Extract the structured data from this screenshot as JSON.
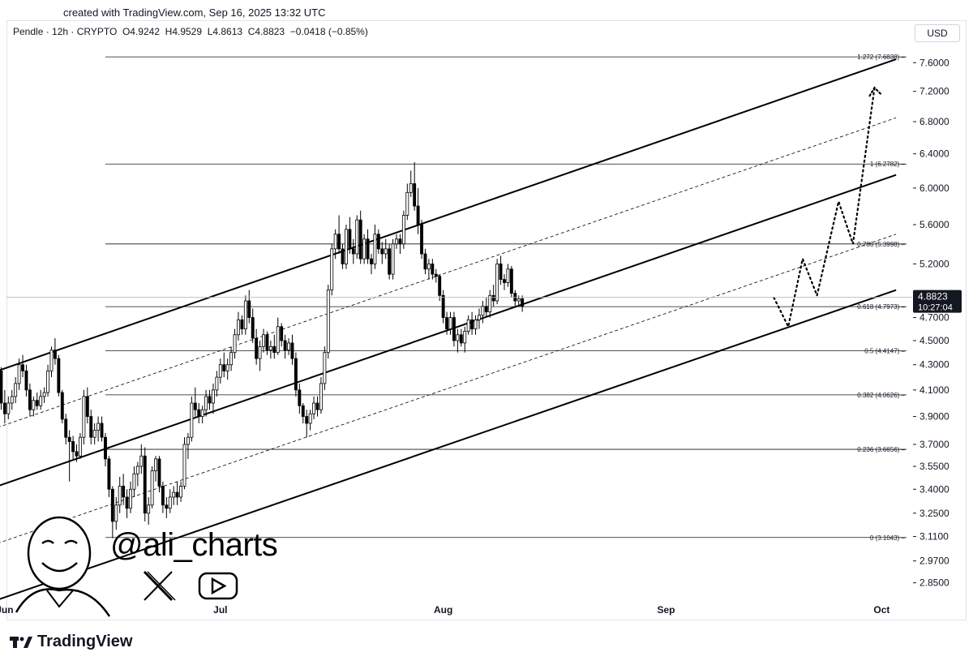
{
  "header": {
    "created": "created with TradingView.com, Sep 16, 2025 13:32 UTC"
  },
  "legend": {
    "text": "Pendle · 12h · CRYPTO  O4.9242  H4.9529  L4.8613  C4.8823  −0.0418 (−0.85%)"
  },
  "currency": "USD",
  "watermark": {
    "handle": "@ali_charts",
    "icons": [
      "avatar-illustration",
      "x-logo-icon",
      "youtube-icon"
    ]
  },
  "footer": {
    "brand": "TradingView",
    "logo": "tradingview-logo-icon"
  },
  "colors": {
    "line": "#000000",
    "fib": "#131722",
    "price_tag_bg": "#131722",
    "price_tag_fg": "#ffffff"
  },
  "chart_data": {
    "type": "candlestick",
    "symbol": "Pendle",
    "interval": "12h",
    "exchange": "CRYPTO",
    "y_axis": {
      "scale": "log",
      "ylim": [
        2.75,
        7.9
      ],
      "ticks": [
        "7.6000",
        "7.2000",
        "6.8000",
        "6.4000",
        "6.0000",
        "5.6000",
        "5.2000",
        "4.7000",
        "4.5000",
        "4.3000",
        "4.1000",
        "3.9000",
        "3.7000",
        "3.5500",
        "3.4000",
        "3.2500",
        "3.1100",
        "2.9700",
        "2.8500"
      ]
    },
    "x_axis": {
      "range": [
        "2025-05-31",
        "2025-10-04"
      ],
      "ticks": [
        {
          "label": "Jun",
          "date": "2025-06-01"
        },
        {
          "label": "Jul",
          "date": "2025-07-01"
        },
        {
          "label": "Aug",
          "date": "2025-08-01"
        },
        {
          "label": "Sep",
          "date": "2025-09-01"
        },
        {
          "label": "Oct",
          "date": "2025-10-01"
        }
      ]
    },
    "last_price": {
      "value": "4.8823",
      "countdown": "10:27:04",
      "numeric": 4.8823
    },
    "fib_levels": [
      {
        "label": "1.272 (7.6838)",
        "value": 7.6838
      },
      {
        "label": "1 (6.2782)",
        "value": 6.2782
      },
      {
        "label": "0.786 (5.3998)",
        "value": 5.3998
      },
      {
        "label": "0.618 (4.7973)",
        "value": 4.7973
      },
      {
        "label": "0.5 (4.4147)",
        "value": 4.4147
      },
      {
        "label": "0.382 (4.0626)",
        "value": 4.0626
      },
      {
        "label": "0.236 (3.6656)",
        "value": 3.6656
      },
      {
        "label": "0 (3.1043)",
        "value": 3.1043
      }
    ],
    "fib_start": "2025-06-15",
    "channels": [
      {
        "name": "upper-channel",
        "style": "solid",
        "points": [
          [
            "2025-05-31",
            4.25
          ],
          [
            "2025-10-03",
            7.65
          ]
        ]
      },
      {
        "name": "upper-mid-channel",
        "style": "dashed",
        "points": [
          [
            "2025-05-31",
            3.82
          ],
          [
            "2025-10-03",
            6.85
          ]
        ]
      },
      {
        "name": "middle-channel",
        "style": "solid",
        "points": [
          [
            "2025-05-31",
            3.42
          ],
          [
            "2025-10-03",
            6.15
          ]
        ]
      },
      {
        "name": "lower-mid-channel",
        "style": "dashed",
        "points": [
          [
            "2025-05-31",
            3.07
          ],
          [
            "2025-10-03",
            5.5
          ]
        ]
      },
      {
        "name": "lower-channel",
        "style": "solid",
        "points": [
          [
            "2025-05-31",
            2.76
          ],
          [
            "2025-10-03",
            4.95
          ]
        ]
      }
    ],
    "projection": {
      "style": "dotted",
      "points": [
        [
          "2025-09-16",
          4.88
        ],
        [
          "2025-09-18",
          4.62
        ],
        [
          "2025-09-20",
          5.25
        ],
        [
          "2025-09-22",
          4.9
        ],
        [
          "2025-09-25",
          5.85
        ],
        [
          "2025-09-27",
          5.4
        ],
        [
          "2025-09-30",
          7.25
        ]
      ],
      "arrow_at": [
        "2025-09-30",
        7.25
      ]
    },
    "candles": [
      [
        "2025-05-31",
        4.18,
        4.3,
        4.1,
        4.25
      ],
      [
        "2025-05-31 12:00",
        4.25,
        4.28,
        3.95,
        4.0
      ],
      [
        "2025-06-01",
        4.0,
        4.1,
        3.85,
        3.92
      ],
      [
        "2025-06-01 12:00",
        3.92,
        4.05,
        3.88,
        4.0
      ],
      [
        "2025-06-02",
        4.0,
        4.1,
        3.95,
        4.05
      ],
      [
        "2025-06-02 12:00",
        4.05,
        4.2,
        4.0,
        4.15
      ],
      [
        "2025-06-03",
        4.15,
        4.35,
        4.1,
        4.3
      ],
      [
        "2025-06-03 12:00",
        4.3,
        4.38,
        4.2,
        4.25
      ],
      [
        "2025-06-04",
        4.25,
        4.3,
        4.05,
        4.1
      ],
      [
        "2025-06-04 12:00",
        4.1,
        4.15,
        3.9,
        3.95
      ],
      [
        "2025-06-05",
        3.95,
        4.05,
        3.9,
        4.02
      ],
      [
        "2025-06-05 12:00",
        4.02,
        4.08,
        3.95,
        3.98
      ],
      [
        "2025-06-06",
        3.98,
        4.1,
        3.95,
        4.05
      ],
      [
        "2025-06-06 12:00",
        4.05,
        4.12,
        4.0,
        4.08
      ],
      [
        "2025-06-07",
        4.08,
        4.3,
        4.05,
        4.25
      ],
      [
        "2025-06-07 12:00",
        4.25,
        4.45,
        4.2,
        4.42
      ],
      [
        "2025-06-08",
        4.42,
        4.52,
        4.3,
        4.35
      ],
      [
        "2025-06-08 12:00",
        4.35,
        4.38,
        4.05,
        4.08
      ],
      [
        "2025-06-09",
        4.08,
        4.1,
        3.85,
        3.88
      ],
      [
        "2025-06-09 12:00",
        3.88,
        3.92,
        3.7,
        3.75
      ],
      [
        "2025-06-10",
        3.75,
        3.8,
        3.45,
        3.72
      ],
      [
        "2025-06-10 12:00",
        3.72,
        3.76,
        3.6,
        3.65
      ],
      [
        "2025-06-11",
        3.65,
        3.7,
        3.58,
        3.62
      ],
      [
        "2025-06-11 12:00",
        3.62,
        3.78,
        3.6,
        3.75
      ],
      [
        "2025-06-12",
        3.75,
        4.1,
        3.7,
        4.05
      ],
      [
        "2025-06-12 12:00",
        4.05,
        4.12,
        3.85,
        3.9
      ],
      [
        "2025-06-13",
        3.9,
        3.95,
        3.7,
        3.75
      ],
      [
        "2025-06-13 12:00",
        3.75,
        3.85,
        3.7,
        3.8
      ],
      [
        "2025-06-14",
        3.8,
        3.9,
        3.72,
        3.85
      ],
      [
        "2025-06-14 12:00",
        3.85,
        3.9,
        3.72,
        3.75
      ],
      [
        "2025-06-15",
        3.75,
        3.78,
        3.55,
        3.6
      ],
      [
        "2025-06-15 12:00",
        3.6,
        3.62,
        3.35,
        3.4
      ],
      [
        "2025-06-16",
        3.4,
        3.42,
        3.1,
        3.2
      ],
      [
        "2025-06-16 12:00",
        3.2,
        3.35,
        3.15,
        3.3
      ],
      [
        "2025-06-17",
        3.3,
        3.48,
        3.25,
        3.42
      ],
      [
        "2025-06-17 12:00",
        3.42,
        3.5,
        3.3,
        3.35
      ],
      [
        "2025-06-18",
        3.35,
        3.4,
        3.22,
        3.28
      ],
      [
        "2025-06-18 12:00",
        3.28,
        3.45,
        3.25,
        3.4
      ],
      [
        "2025-06-19",
        3.4,
        3.55,
        3.35,
        3.5
      ],
      [
        "2025-06-19 12:00",
        3.5,
        3.58,
        3.42,
        3.55
      ],
      [
        "2025-06-20",
        3.55,
        3.7,
        3.5,
        3.62
      ],
      [
        "2025-06-20 12:00",
        3.62,
        3.68,
        3.2,
        3.25
      ],
      [
        "2025-06-21",
        3.25,
        3.35,
        3.18,
        3.3
      ],
      [
        "2025-06-21 12:00",
        3.3,
        3.55,
        3.28,
        3.52
      ],
      [
        "2025-06-22",
        3.52,
        3.62,
        3.45,
        3.6
      ],
      [
        "2025-06-22 12:00",
        3.6,
        3.62,
        3.38,
        3.42
      ],
      [
        "2025-06-23",
        3.42,
        3.45,
        3.25,
        3.3
      ],
      [
        "2025-06-23 12:00",
        3.3,
        3.35,
        3.22,
        3.28
      ],
      [
        "2025-06-24",
        3.28,
        3.4,
        3.25,
        3.35
      ],
      [
        "2025-06-24 12:00",
        3.35,
        3.42,
        3.3,
        3.38
      ],
      [
        "2025-06-25",
        3.38,
        3.45,
        3.3,
        3.35
      ],
      [
        "2025-06-25 12:00",
        3.35,
        3.45,
        3.32,
        3.42
      ],
      [
        "2025-06-26",
        3.42,
        3.75,
        3.4,
        3.7
      ],
      [
        "2025-06-26 12:00",
        3.7,
        3.78,
        3.6,
        3.75
      ],
      [
        "2025-06-27",
        3.75,
        4.05,
        3.72,
        4.0
      ],
      [
        "2025-06-27 12:00",
        4.0,
        4.12,
        3.9,
        3.95
      ],
      [
        "2025-06-28",
        3.95,
        4.0,
        3.85,
        3.9
      ],
      [
        "2025-06-28 12:00",
        3.9,
        3.98,
        3.85,
        3.95
      ],
      [
        "2025-06-29",
        3.95,
        4.1,
        3.9,
        4.05
      ],
      [
        "2025-06-29 12:00",
        4.05,
        4.1,
        3.95,
        4.0
      ],
      [
        "2025-06-30",
        4.0,
        4.15,
        3.92,
        4.1
      ],
      [
        "2025-06-30 12:00",
        4.1,
        4.25,
        4.05,
        4.2
      ],
      [
        "2025-07-01",
        4.2,
        4.35,
        4.15,
        4.3
      ],
      [
        "2025-07-01 12:00",
        4.3,
        4.4,
        4.2,
        4.25
      ],
      [
        "2025-07-02",
        4.25,
        4.35,
        4.18,
        4.3
      ],
      [
        "2025-07-02 12:00",
        4.3,
        4.45,
        4.25,
        4.4
      ],
      [
        "2025-07-03",
        4.4,
        4.6,
        4.35,
        4.55
      ],
      [
        "2025-07-03 12:00",
        4.55,
        4.75,
        4.5,
        4.68
      ],
      [
        "2025-07-04",
        4.68,
        4.72,
        4.55,
        4.6
      ],
      [
        "2025-07-04 12:00",
        4.6,
        4.9,
        4.55,
        4.85
      ],
      [
        "2025-07-05",
        4.85,
        4.95,
        4.65,
        4.7
      ],
      [
        "2025-07-05 12:00",
        4.7,
        4.78,
        4.48,
        4.52
      ],
      [
        "2025-07-06",
        4.52,
        4.6,
        4.3,
        4.35
      ],
      [
        "2025-07-06 12:00",
        4.35,
        4.5,
        4.25,
        4.45
      ],
      [
        "2025-07-07",
        4.45,
        4.6,
        4.4,
        4.55
      ],
      [
        "2025-07-07 12:00",
        4.55,
        4.58,
        4.38,
        4.42
      ],
      [
        "2025-07-08",
        4.42,
        4.5,
        4.35,
        4.45
      ],
      [
        "2025-07-08 12:00",
        4.45,
        4.55,
        4.35,
        4.4
      ],
      [
        "2025-07-09",
        4.4,
        4.7,
        4.38,
        4.62
      ],
      [
        "2025-07-09 12:00",
        4.62,
        4.65,
        4.45,
        4.5
      ],
      [
        "2025-07-10",
        4.5,
        4.55,
        4.35,
        4.42
      ],
      [
        "2025-07-10 12:00",
        4.42,
        4.52,
        4.38,
        4.48
      ],
      [
        "2025-07-11",
        4.48,
        4.55,
        4.3,
        4.35
      ],
      [
        "2025-07-11 12:00",
        4.35,
        4.4,
        4.05,
        4.1
      ],
      [
        "2025-07-12",
        4.1,
        4.15,
        3.92,
        3.98
      ],
      [
        "2025-07-12 12:00",
        3.98,
        4.0,
        3.85,
        3.9
      ],
      [
        "2025-07-13",
        3.9,
        3.95,
        3.75,
        3.85
      ],
      [
        "2025-07-13 12:00",
        3.85,
        3.95,
        3.8,
        3.92
      ],
      [
        "2025-07-14",
        3.92,
        4.05,
        3.88,
        4.0
      ],
      [
        "2025-07-14 12:00",
        4.0,
        4.05,
        3.9,
        3.95
      ],
      [
        "2025-07-15",
        3.95,
        4.2,
        3.92,
        4.15
      ],
      [
        "2025-07-15 12:00",
        4.15,
        4.45,
        4.1,
        4.4
      ],
      [
        "2025-07-16",
        4.4,
        5.0,
        4.35,
        4.95
      ],
      [
        "2025-07-16 12:00",
        4.95,
        5.4,
        4.9,
        5.35
      ],
      [
        "2025-07-17",
        5.35,
        5.55,
        5.25,
        5.5
      ],
      [
        "2025-07-17 12:00",
        5.5,
        5.7,
        5.3,
        5.35
      ],
      [
        "2025-07-18",
        5.35,
        5.4,
        5.15,
        5.2
      ],
      [
        "2025-07-18 12:00",
        5.2,
        5.6,
        5.15,
        5.55
      ],
      [
        "2025-07-19",
        5.55,
        5.68,
        5.3,
        5.35
      ],
      [
        "2025-07-19 12:00",
        5.35,
        5.45,
        5.2,
        5.3
      ],
      [
        "2025-07-20",
        5.3,
        5.7,
        5.25,
        5.65
      ],
      [
        "2025-07-20 12:00",
        5.65,
        5.75,
        5.2,
        5.25
      ],
      [
        "2025-07-21",
        5.25,
        5.5,
        5.2,
        5.45
      ],
      [
        "2025-07-21 12:00",
        5.45,
        5.55,
        5.2,
        5.25
      ],
      [
        "2025-07-22",
        5.25,
        5.3,
        5.1,
        5.2
      ],
      [
        "2025-07-22 12:00",
        5.2,
        5.6,
        5.15,
        5.5
      ],
      [
        "2025-07-23",
        5.5,
        5.55,
        5.3,
        5.35
      ],
      [
        "2025-07-23 12:00",
        5.35,
        5.42,
        5.2,
        5.3
      ],
      [
        "2025-07-24",
        5.3,
        5.45,
        5.25,
        5.35
      ],
      [
        "2025-07-24 12:00",
        5.35,
        5.4,
        5.05,
        5.1
      ],
      [
        "2025-07-25",
        5.1,
        5.45,
        5.05,
        5.4
      ],
      [
        "2025-07-25 12:00",
        5.4,
        5.5,
        5.35,
        5.45
      ],
      [
        "2025-07-26",
        5.45,
        5.5,
        5.3,
        5.4
      ],
      [
        "2025-07-26 12:00",
        5.4,
        5.75,
        5.35,
        5.7
      ],
      [
        "2025-07-27",
        5.7,
        6.05,
        5.65,
        5.95
      ],
      [
        "2025-07-27 12:00",
        5.95,
        6.2,
        5.9,
        6.05
      ],
      [
        "2025-07-28",
        6.05,
        6.3,
        5.75,
        5.8
      ],
      [
        "2025-07-28 12:00",
        5.8,
        6.0,
        5.5,
        5.6
      ],
      [
        "2025-07-29",
        5.6,
        5.65,
        5.25,
        5.3
      ],
      [
        "2025-07-29 12:00",
        5.3,
        5.35,
        5.1,
        5.15
      ],
      [
        "2025-07-30",
        5.15,
        5.25,
        5.05,
        5.2
      ],
      [
        "2025-07-30 12:00",
        5.2,
        5.25,
        5.05,
        5.1
      ],
      [
        "2025-07-31",
        5.1,
        5.15,
        5.02,
        5.08
      ],
      [
        "2025-07-31 12:00",
        5.08,
        5.1,
        4.85,
        4.9
      ],
      [
        "2025-08-01",
        4.9,
        4.95,
        4.65,
        4.7
      ],
      [
        "2025-08-01 12:00",
        4.7,
        4.75,
        4.55,
        4.6
      ],
      [
        "2025-08-02",
        4.6,
        4.75,
        4.55,
        4.7
      ],
      [
        "2025-08-02 12:00",
        4.7,
        4.75,
        4.45,
        4.5
      ],
      [
        "2025-08-03",
        4.5,
        4.6,
        4.4,
        4.55
      ],
      [
        "2025-08-03 12:00",
        4.55,
        4.6,
        4.45,
        4.48
      ],
      [
        "2025-08-04",
        4.48,
        4.62,
        4.4,
        4.58
      ],
      [
        "2025-08-04 12:00",
        4.58,
        4.72,
        4.55,
        4.68
      ],
      [
        "2025-08-05",
        4.68,
        4.75,
        4.55,
        4.6
      ],
      [
        "2025-08-05 12:00",
        4.6,
        4.72,
        4.55,
        4.68
      ],
      [
        "2025-08-06",
        4.68,
        4.78,
        4.6,
        4.72
      ],
      [
        "2025-08-06 12:00",
        4.72,
        4.85,
        4.65,
        4.8
      ],
      [
        "2025-08-07",
        4.8,
        4.88,
        4.7,
        4.75
      ],
      [
        "2025-08-07 12:00",
        4.75,
        4.95,
        4.7,
        4.9
      ],
      [
        "2025-08-08",
        4.9,
        5.0,
        4.8,
        4.85
      ],
      [
        "2025-08-08 12:00",
        4.85,
        5.25,
        4.82,
        5.2
      ],
      [
        "2025-08-09",
        5.2,
        5.28,
        5.0,
        5.05
      ],
      [
        "2025-08-09 12:00",
        5.05,
        5.1,
        4.95,
        5.02
      ],
      [
        "2025-08-10",
        5.02,
        5.2,
        4.98,
        5.15
      ],
      [
        "2025-08-10 12:00",
        5.15,
        5.18,
        4.88,
        4.92
      ],
      [
        "2025-08-11",
        4.92,
        4.95,
        4.8,
        4.85
      ],
      [
        "2025-08-11 12:00",
        4.85,
        4.9,
        4.8,
        4.87
      ],
      [
        "2025-08-12",
        4.87,
        4.9,
        4.75,
        4.8
      ]
    ]
  }
}
